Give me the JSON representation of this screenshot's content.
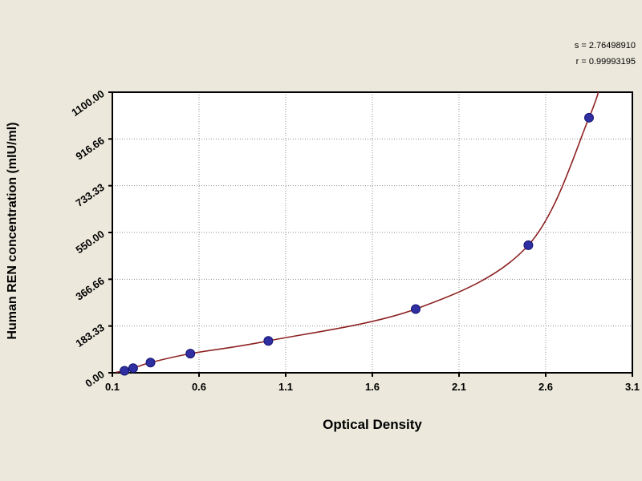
{
  "chart_data": {
    "type": "scatter",
    "title": "",
    "xlabel": "Optical Density",
    "ylabel": "Human REN concentration (mIU/ml)",
    "annotations": [
      "s = 2.76498910",
      "r = 0.99993195"
    ],
    "x_domain": [
      0.1,
      3.1
    ],
    "y_domain": [
      0,
      1100
    ],
    "x_ticks": {
      "values": [
        0.1,
        0.6,
        1.1,
        1.6,
        2.1,
        2.6,
        3.1
      ],
      "labels": [
        "0.1",
        "0.6",
        "1.1",
        "1.6",
        "2.1",
        "2.6",
        "3.1"
      ]
    },
    "y_ticks": {
      "values": [
        0,
        183.33,
        366.66,
        550.0,
        733.33,
        916.66,
        1100.0
      ],
      "labels": [
        "0.00",
        "183.33",
        "366.66",
        "550.00",
        "733.33",
        "916.66",
        "1100.00"
      ]
    },
    "points": {
      "x": [
        0.17,
        0.22,
        0.32,
        0.55,
        1.0,
        1.85,
        2.5,
        2.85
      ],
      "y": [
        8,
        18,
        40,
        75,
        125,
        250,
        500,
        1000
      ]
    },
    "curve": [
      [
        0.12,
        2
      ],
      [
        0.17,
        8
      ],
      [
        0.22,
        18
      ],
      [
        0.32,
        40
      ],
      [
        0.55,
        75
      ],
      [
        1.0,
        125
      ],
      [
        1.85,
        250
      ],
      [
        2.5,
        500
      ],
      [
        2.85,
        1000
      ],
      [
        2.94,
        1200
      ]
    ],
    "grid": true,
    "legend": "none",
    "colors": {
      "background": "#ece9dc",
      "plot_bg": "#ffffff",
      "grid": "#8c8c8c",
      "frame": "#000000",
      "curve": "#8e2323",
      "marker": "#2f2fa2",
      "marker_edge": "#151570",
      "text": "#000000"
    }
  }
}
